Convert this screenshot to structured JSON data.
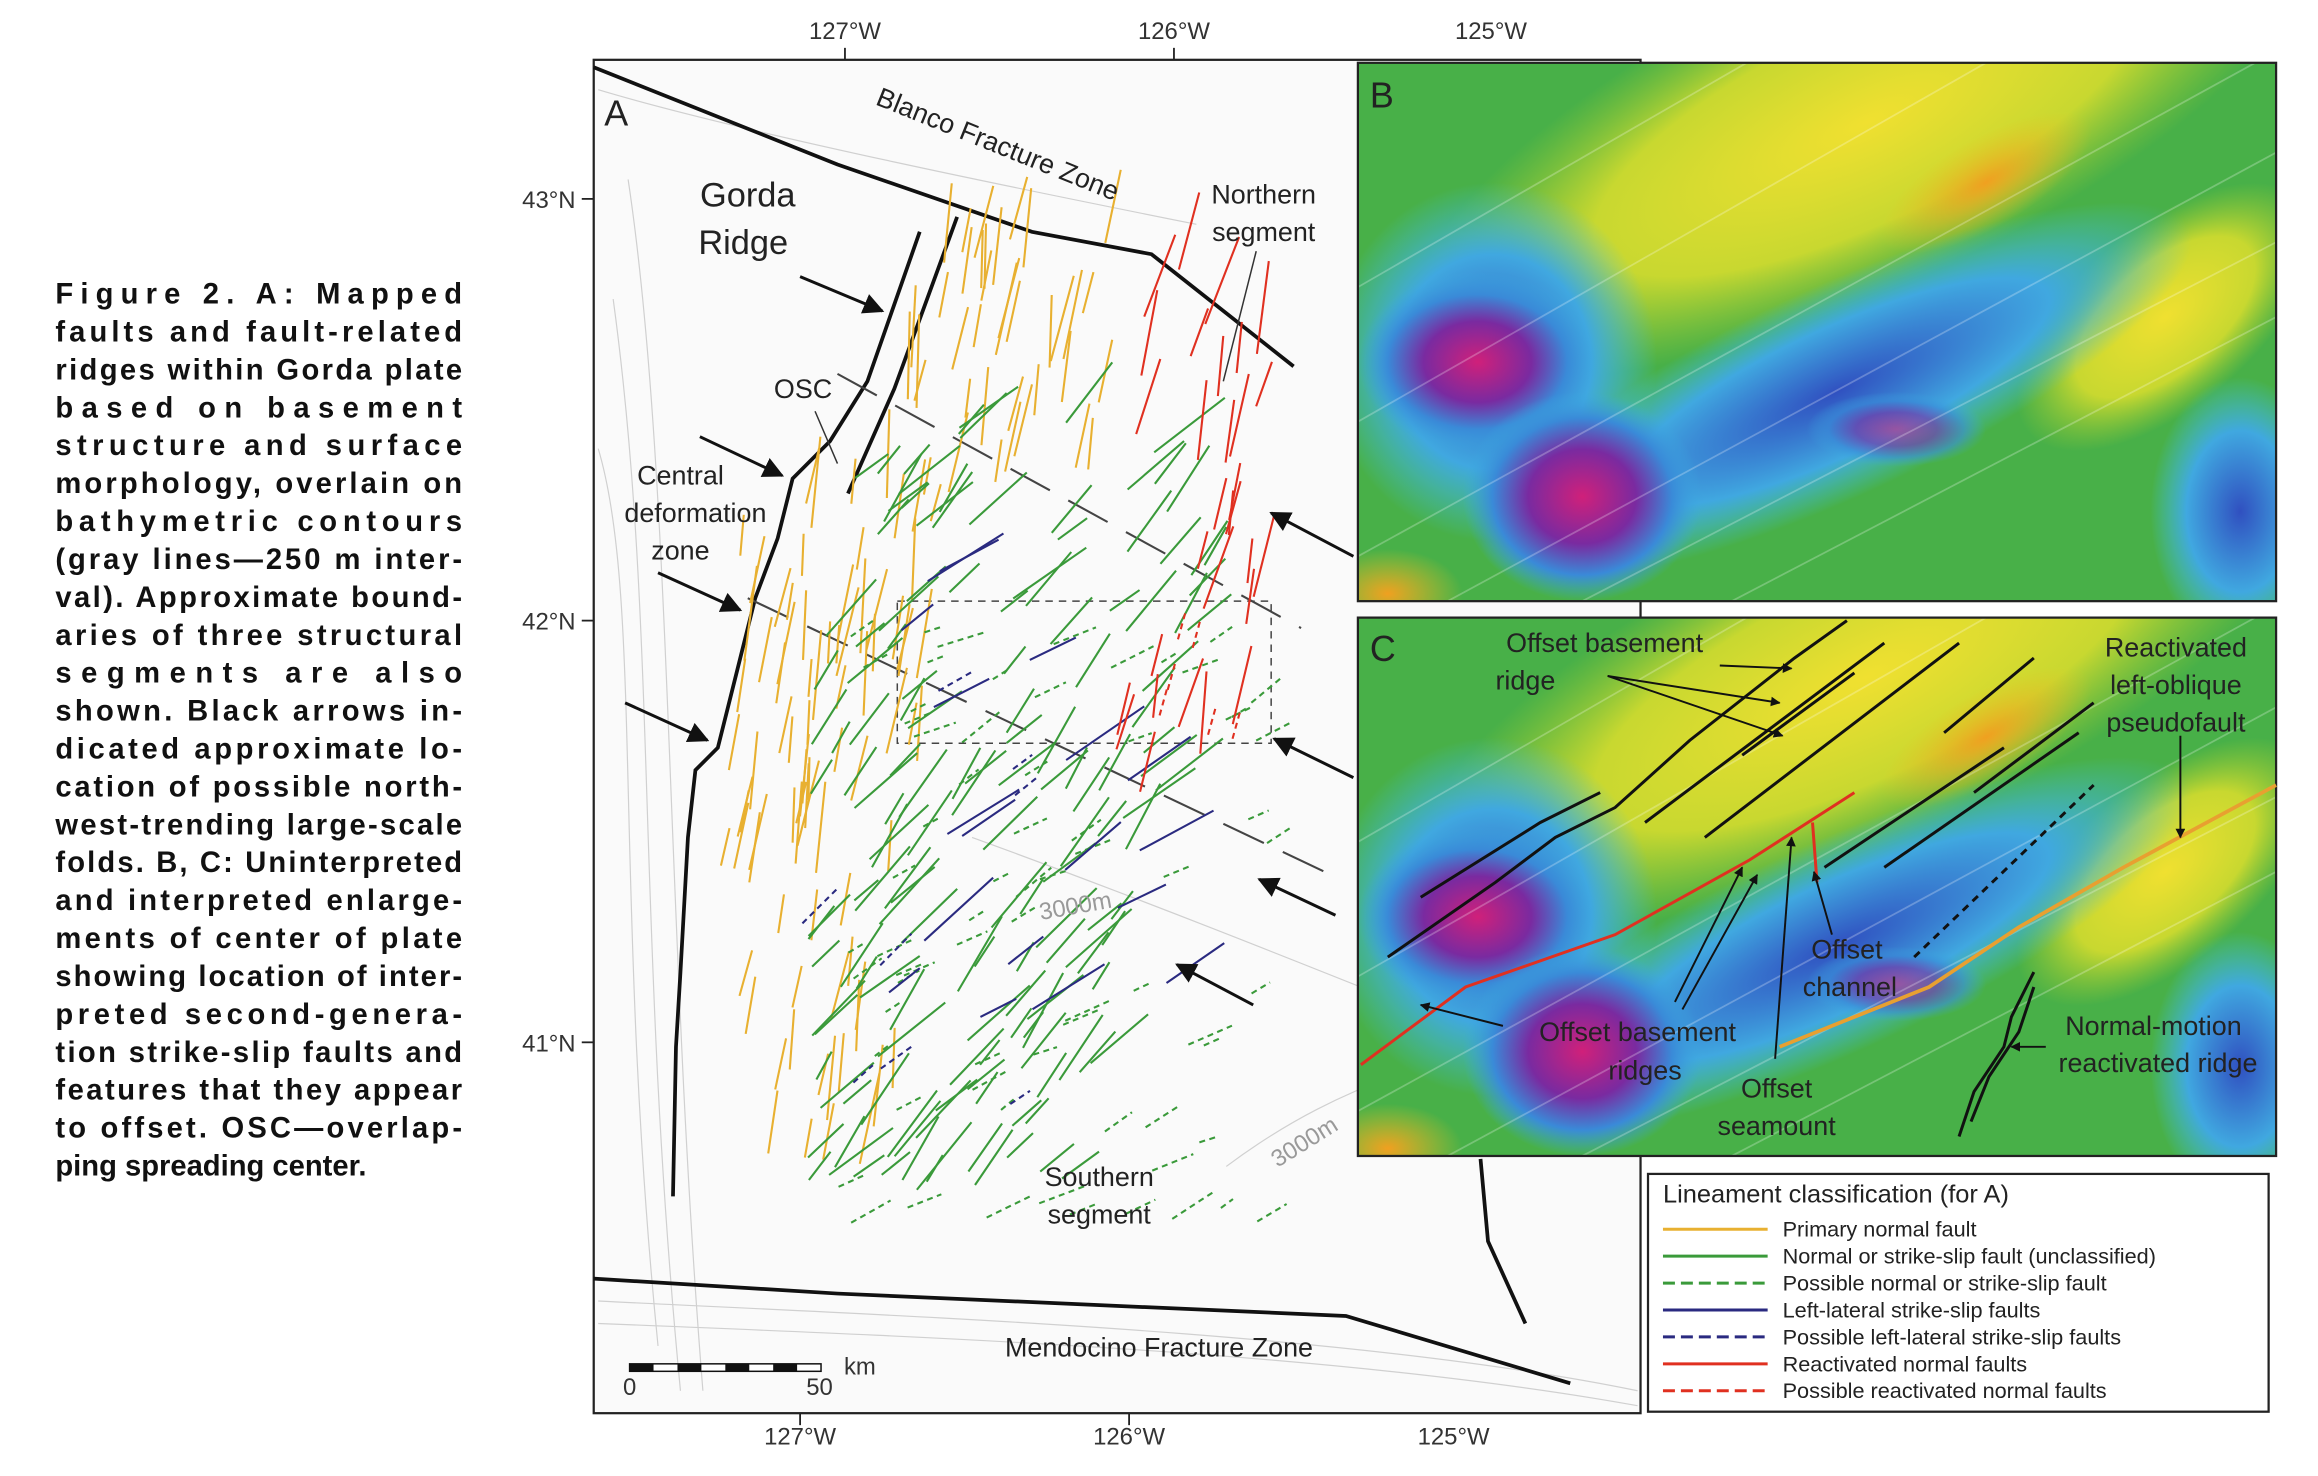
{
  "caption": {
    "lines": [
      "Figure 2. A: Mapped",
      "faults and fault-related",
      "ridges within Gorda plate",
      "based on basement",
      "structure and surface",
      "morphology, overlain on",
      "bathymetric contours",
      "(gray lines—250 m inter-",
      "val). Approximate bound-",
      "aries of three structural",
      "segments are also",
      "shown. Black arrows in-",
      "dicated approximate lo-",
      "cation of possible north-",
      "west-trending large-scale",
      "folds. B, C: Uninterpreted",
      "and interpreted enlarge-",
      "ments of center of plate",
      "showing location of inter-",
      "preted second-genera-",
      "tion strike-slip faults and",
      "features that they appear",
      "to offset. OSC—overlap-",
      "ping spreading center."
    ]
  },
  "axes": {
    "top": [
      "127°W",
      "126°W",
      "125°W"
    ],
    "bottom": [
      "127°W",
      "126°W",
      "125°W"
    ],
    "left": [
      "43°N",
      "42°N",
      "41°N"
    ]
  },
  "panel_a": {
    "label": "A",
    "blanco": "Blanco Fracture Zone",
    "gorda": [
      "Gorda",
      "Ridge"
    ],
    "northern": [
      "Northern",
      "segment"
    ],
    "osc": "OSC",
    "central": [
      "Central",
      "deformation",
      "zone"
    ],
    "contour_labels": [
      "3000m",
      "3000m"
    ],
    "southern": [
      "Southern",
      "segment"
    ],
    "mendocino": "Mendocino Fracture Zone",
    "scale": [
      "0",
      "50",
      "km"
    ]
  },
  "panel_b": {
    "label": "B"
  },
  "panel_c": {
    "label": "C",
    "offset_basement_ridge": [
      "Offset basement",
      "ridge"
    ],
    "reactivated": [
      "Reactivated",
      "left-oblique",
      "pseudofault"
    ],
    "offset_channel": [
      "Offset",
      "channel"
    ],
    "offset_basement_ridges": [
      "Offset basement",
      "ridges"
    ],
    "offset_seamount": [
      "Offset",
      "seamount"
    ],
    "normal_motion": [
      "Normal-motion",
      "reactivated ridge"
    ]
  },
  "legend": {
    "title": "Lineament classification (for A)",
    "items": [
      {
        "label": "Primary normal fault",
        "color": "#e8b030",
        "dashed": false
      },
      {
        "label": "Normal or strike-slip fault (unclassified)",
        "color": "#3a9a3a",
        "dashed": false
      },
      {
        "label": "Possible normal or strike-slip fault",
        "color": "#3a9a3a",
        "dashed": true
      },
      {
        "label": "Left-lateral strike-slip faults",
        "color": "#2a2a80",
        "dashed": false
      },
      {
        "label": "Possible left-lateral strike-slip faults",
        "color": "#2a2a80",
        "dashed": true
      },
      {
        "label": "Reactivated normal faults",
        "color": "#e03020",
        "dashed": false
      },
      {
        "label": "Possible  reactivated normal faults",
        "color": "#e03020",
        "dashed": true
      }
    ]
  }
}
